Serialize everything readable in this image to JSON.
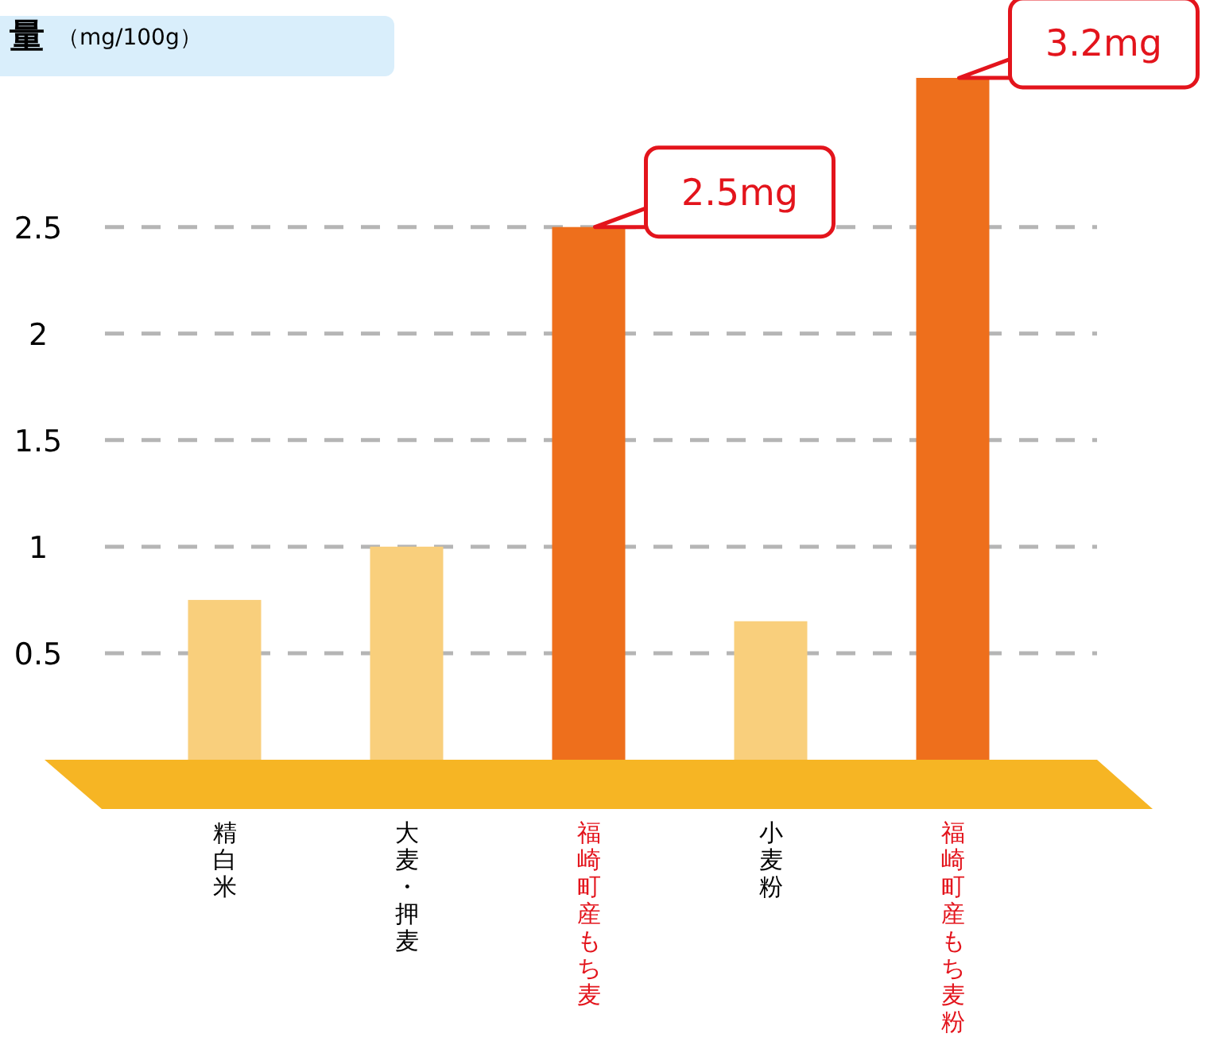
{
  "chart_data": {
    "type": "bar",
    "title": "量",
    "subtitle": "（mg/100g）",
    "categories": [
      "精白米",
      "大麦・押麦",
      "福崎町産もち麦",
      "小麦粉",
      "福崎町産もち麦粉"
    ],
    "values": [
      0.75,
      1.0,
      2.5,
      0.65,
      3.2
    ],
    "colors": [
      "#f9cf7c",
      "#f9cf7c",
      "#ee6f1c",
      "#f9cf7c",
      "#ee6f1c"
    ],
    "value_labels": [
      null,
      null,
      "2.5mg",
      null,
      "3.2mg"
    ],
    "ylim": [
      0,
      3.2
    ],
    "yticks": [
      0.5,
      1,
      1.5,
      2,
      2.5
    ],
    "grid": "y"
  }
}
